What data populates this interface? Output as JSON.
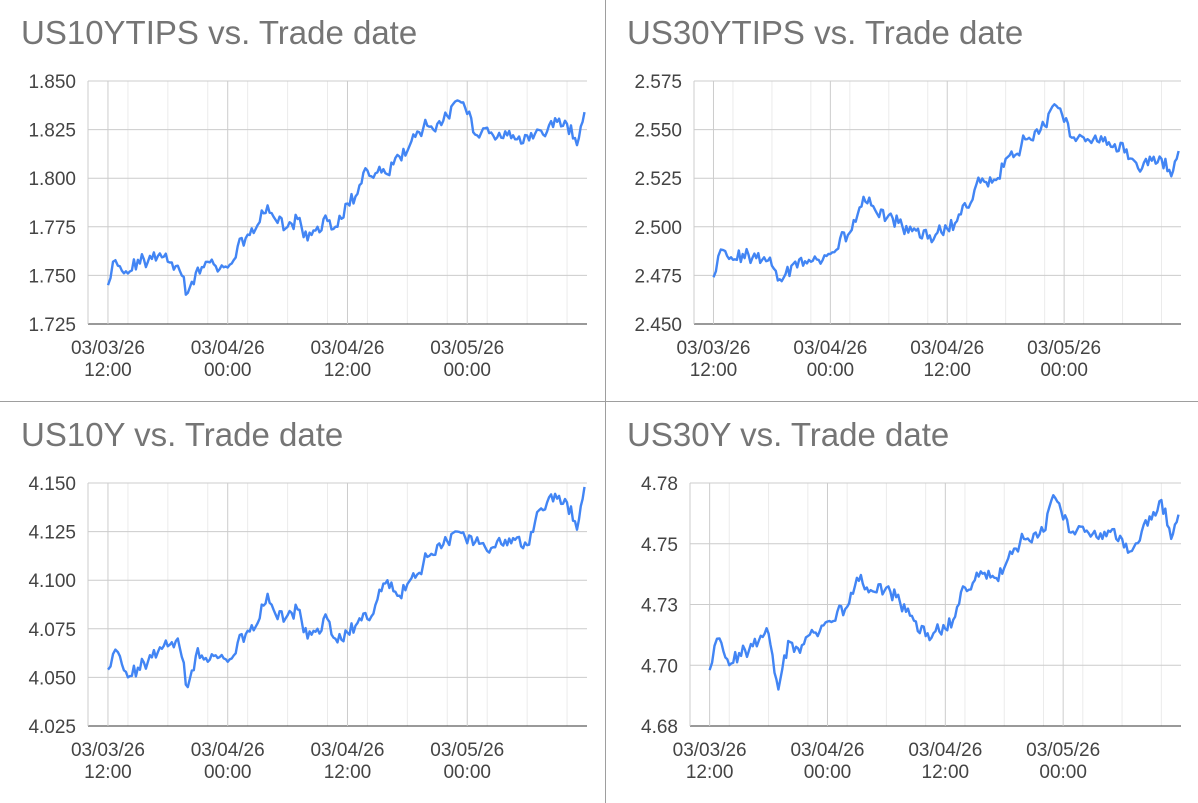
{
  "chart_data": [
    {
      "type": "line",
      "title": "US10YTIPS vs. Trade date",
      "ylim": [
        1.725,
        1.85
      ],
      "yticks": [
        "1.725",
        "1.750",
        "1.775",
        "1.800",
        "1.825",
        "1.850"
      ],
      "xticks": [
        {
          "date": "03/03/26",
          "time": "12:00"
        },
        {
          "date": "03/04/26",
          "time": "00:00"
        },
        {
          "date": "03/04/26",
          "time": "12:00"
        },
        {
          "date": "03/05/26",
          "time": "00:00"
        }
      ],
      "grid": true,
      "color": "#4285f4",
      "series": [
        {
          "x": [
            "03/03/26 12:00",
            "03/03/26 12:30",
            "03/03/26 13:00",
            "03/03/26 14:00",
            "03/03/26 15:00",
            "03/03/26 16:00",
            "03/03/26 17:00",
            "03/03/26 18:00",
            "03/03/26 19:00",
            "03/03/26 20:00",
            "03/03/26 21:00",
            "03/03/26 22:00",
            "03/03/26 23:00",
            "03/04/26 00:00",
            "03/04/26 01:00",
            "03/04/26 02:00",
            "03/04/26 03:00",
            "03/04/26 04:00",
            "03/04/26 05:00",
            "03/04/26 06:00",
            "03/04/26 07:00",
            "03/04/26 08:00",
            "03/04/26 09:00",
            "03/04/26 10:00",
            "03/04/26 11:00",
            "03/04/26 12:00",
            "03/04/26 13:00",
            "03/04/26 14:00",
            "03/04/26 15:00",
            "03/04/26 16:00",
            "03/04/26 17:00",
            "03/04/26 18:00",
            "03/04/26 19:00",
            "03/04/26 20:00",
            "03/04/26 21:00",
            "03/04/26 22:00",
            "03/04/26 23:00",
            "03/05/26 00:00",
            "03/05/26 01:00",
            "03/05/26 02:00",
            "03/05/26 03:00",
            "03/05/26 04:00",
            "03/05/26 05:00",
            "03/05/26 06:00",
            "03/05/26 07:00",
            "03/05/26 08:00",
            "03/05/26 09:00",
            "03/05/26 10:00",
            "03/05/26 11:00",
            "03/05/26 11:45"
          ],
          "values": [
            1.745,
            1.757,
            1.755,
            1.751,
            1.758,
            1.757,
            1.76,
            1.757,
            1.755,
            1.741,
            1.754,
            1.757,
            1.752,
            1.754,
            1.765,
            1.771,
            1.776,
            1.786,
            1.777,
            1.775,
            1.779,
            1.768,
            1.775,
            1.778,
            1.775,
            1.787,
            1.792,
            1.804,
            1.803,
            1.802,
            1.812,
            1.814,
            1.824,
            1.827,
            1.828,
            1.832,
            1.84,
            1.833,
            1.822,
            1.826,
            1.821,
            1.822,
            1.82,
            1.822,
            1.825,
            1.824,
            1.829,
            1.828,
            1.817,
            1.834
          ]
        }
      ]
    },
    {
      "type": "line",
      "title": "US30YTIPS vs. Trade date",
      "ylim": [
        2.45,
        2.575
      ],
      "yticks": [
        "2.450",
        "2.475",
        "2.500",
        "2.525",
        "2.550",
        "2.575"
      ],
      "xticks": [
        {
          "date": "03/03/26",
          "time": "12:00"
        },
        {
          "date": "03/04/26",
          "time": "00:00"
        },
        {
          "date": "03/04/26",
          "time": "12:00"
        },
        {
          "date": "03/05/26",
          "time": "00:00"
        }
      ],
      "grid": true,
      "color": "#4285f4",
      "series": [
        {
          "x": [
            "03/03/26 12:00",
            "03/03/26 12:30",
            "03/03/26 13:00",
            "03/03/26 14:00",
            "03/03/26 15:00",
            "03/03/26 16:00",
            "03/03/26 17:00",
            "03/03/26 18:00",
            "03/03/26 19:00",
            "03/03/26 20:00",
            "03/03/26 21:00",
            "03/03/26 22:00",
            "03/03/26 23:00",
            "03/04/26 00:00",
            "03/04/26 01:00",
            "03/04/26 02:00",
            "03/04/26 03:00",
            "03/04/26 04:00",
            "03/04/26 05:00",
            "03/04/26 06:00",
            "03/04/26 07:00",
            "03/04/26 08:00",
            "03/04/26 09:00",
            "03/04/26 10:00",
            "03/04/26 11:00",
            "03/04/26 12:00",
            "03/04/26 13:00",
            "03/04/26 14:00",
            "03/04/26 15:00",
            "03/04/26 16:00",
            "03/04/26 17:00",
            "03/04/26 18:00",
            "03/04/26 19:00",
            "03/04/26 20:00",
            "03/04/26 21:00",
            "03/04/26 22:00",
            "03/04/26 23:00",
            "03/05/26 00:00",
            "03/05/26 01:00",
            "03/05/26 02:00",
            "03/05/26 03:00",
            "03/05/26 04:00",
            "03/05/26 05:00",
            "03/05/26 06:00",
            "03/05/26 07:00",
            "03/05/26 08:00",
            "03/05/26 09:00",
            "03/05/26 10:00",
            "03/05/26 11:00",
            "03/05/26 11:45"
          ],
          "values": [
            2.474,
            2.485,
            2.488,
            2.483,
            2.486,
            2.484,
            2.483,
            2.48,
            2.472,
            2.48,
            2.484,
            2.482,
            2.481,
            2.486,
            2.494,
            2.497,
            2.51,
            2.515,
            2.505,
            2.506,
            2.502,
            2.497,
            2.499,
            2.494,
            2.497,
            2.499,
            2.503,
            2.51,
            2.522,
            2.523,
            2.524,
            2.535,
            2.537,
            2.545,
            2.549,
            2.552,
            2.563,
            2.554,
            2.546,
            2.546,
            2.545,
            2.544,
            2.541,
            2.543,
            2.535,
            2.53,
            2.534,
            2.535,
            2.526,
            2.539
          ]
        }
      ]
    },
    {
      "type": "line",
      "title": "US10Y vs. Trade date",
      "ylim": [
        4.025,
        4.15
      ],
      "yticks": [
        "4.025",
        "4.050",
        "4.075",
        "4.100",
        "4.125",
        "4.150"
      ],
      "xticks": [
        {
          "date": "03/03/26",
          "time": "12:00"
        },
        {
          "date": "03/04/26",
          "time": "00:00"
        },
        {
          "date": "03/04/26",
          "time": "12:00"
        },
        {
          "date": "03/05/26",
          "time": "00:00"
        }
      ],
      "grid": true,
      "color": "#4285f4",
      "series": [
        {
          "x": [
            "03/03/26 12:00",
            "03/03/26 12:30",
            "03/03/26 13:00",
            "03/03/26 14:00",
            "03/03/26 15:00",
            "03/03/26 16:00",
            "03/03/26 17:00",
            "03/03/26 18:00",
            "03/03/26 19:00",
            "03/03/26 20:00",
            "03/03/26 21:00",
            "03/03/26 22:00",
            "03/03/26 23:00",
            "03/04/26 00:00",
            "03/04/26 01:00",
            "03/04/26 02:00",
            "03/04/26 03:00",
            "03/04/26 04:00",
            "03/04/26 05:00",
            "03/04/26 06:00",
            "03/04/26 07:00",
            "03/04/26 08:00",
            "03/04/26 09:00",
            "03/04/26 10:00",
            "03/04/26 11:00",
            "03/04/26 12:00",
            "03/04/26 13:00",
            "03/04/26 14:00",
            "03/04/26 15:00",
            "03/04/26 16:00",
            "03/04/26 17:00",
            "03/04/26 18:00",
            "03/04/26 19:00",
            "03/04/26 20:00",
            "03/04/26 21:00",
            "03/04/26 22:00",
            "03/04/26 23:00",
            "03/05/26 00:00",
            "03/05/26 01:00",
            "03/05/26 02:00",
            "03/05/26 03:00",
            "03/05/26 04:00",
            "03/05/26 05:00",
            "03/05/26 06:00",
            "03/05/26 07:00",
            "03/05/26 08:00",
            "03/05/26 09:00",
            "03/05/26 10:00",
            "03/05/26 11:00",
            "03/05/26 11:45"
          ],
          "values": [
            4.054,
            4.062,
            4.063,
            4.05,
            4.055,
            4.058,
            4.063,
            4.066,
            4.07,
            4.045,
            4.065,
            4.058,
            4.06,
            4.058,
            4.068,
            4.074,
            4.078,
            4.093,
            4.08,
            4.082,
            4.085,
            4.07,
            4.075,
            4.08,
            4.068,
            4.073,
            4.078,
            4.08,
            4.09,
            4.1,
            4.092,
            4.098,
            4.103,
            4.112,
            4.118,
            4.12,
            4.125,
            4.119,
            4.122,
            4.115,
            4.12,
            4.118,
            4.122,
            4.118,
            4.135,
            4.14,
            4.142,
            4.14,
            4.126,
            4.148
          ]
        }
      ]
    },
    {
      "type": "line",
      "title": "US30Y vs. Trade date",
      "ylim": [
        4.675,
        4.775
      ],
      "yticks": [
        "4.68",
        "4.70",
        "4.73",
        "4.75",
        "4.78"
      ],
      "xticks": [
        {
          "date": "03/03/26",
          "time": "12:00"
        },
        {
          "date": "03/04/26",
          "time": "00:00"
        },
        {
          "date": "03/04/26",
          "time": "12:00"
        },
        {
          "date": "03/05/26",
          "time": "00:00"
        }
      ],
      "grid": true,
      "color": "#4285f4",
      "series": [
        {
          "x": [
            "03/03/26 12:00",
            "03/03/26 12:30",
            "03/03/26 13:00",
            "03/03/26 14:00",
            "03/03/26 15:00",
            "03/03/26 16:00",
            "03/03/26 17:00",
            "03/03/26 18:00",
            "03/03/26 19:00",
            "03/03/26 20:00",
            "03/03/26 21:00",
            "03/03/26 22:00",
            "03/03/26 23:00",
            "03/04/26 00:00",
            "03/04/26 01:00",
            "03/04/26 02:00",
            "03/04/26 03:00",
            "03/04/26 04:00",
            "03/04/26 05:00",
            "03/04/26 06:00",
            "03/04/26 07:00",
            "03/04/26 08:00",
            "03/04/26 09:00",
            "03/04/26 10:00",
            "03/04/26 11:00",
            "03/04/26 12:00",
            "03/04/26 13:00",
            "03/04/26 14:00",
            "03/04/26 15:00",
            "03/04/26 16:00",
            "03/04/26 17:00",
            "03/04/26 18:00",
            "03/04/26 19:00",
            "03/04/26 20:00",
            "03/04/26 21:00",
            "03/04/26 22:00",
            "03/04/26 23:00",
            "03/05/26 00:00",
            "03/05/26 01:00",
            "03/05/26 02:00",
            "03/05/26 03:00",
            "03/05/26 04:00",
            "03/05/26 05:00",
            "03/05/26 06:00",
            "03/05/26 07:00",
            "03/05/26 08:00",
            "03/05/26 09:00",
            "03/05/26 10:00",
            "03/05/26 11:00",
            "03/05/26 11:45"
          ],
          "values": [
            4.698,
            4.708,
            4.711,
            4.7,
            4.705,
            4.706,
            4.71,
            4.713,
            4.69,
            4.71,
            4.707,
            4.712,
            4.712,
            4.718,
            4.722,
            4.724,
            4.736,
            4.732,
            4.73,
            4.732,
            4.728,
            4.722,
            4.718,
            4.712,
            4.714,
            4.715,
            4.72,
            4.732,
            4.735,
            4.738,
            4.736,
            4.74,
            4.748,
            4.752,
            4.754,
            4.755,
            4.77,
            4.76,
            4.755,
            4.757,
            4.754,
            4.752,
            4.756,
            4.752,
            4.747,
            4.755,
            4.76,
            4.768,
            4.752,
            4.762
          ]
        }
      ]
    }
  ]
}
